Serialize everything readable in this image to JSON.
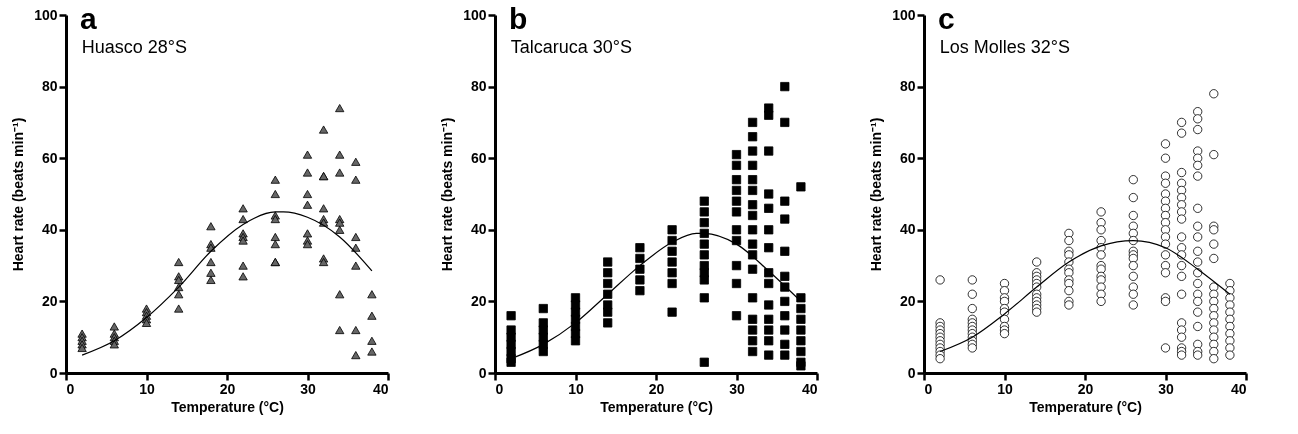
{
  "chart_data": [
    {
      "type": "scatter",
      "title": "Huasco 28°S",
      "annotations": [
        "a"
      ],
      "xlabel": "Temperature (°C)",
      "ylabel": "Heart rate (beats min⁻¹)",
      "xlim": [
        0,
        40
      ],
      "xticks": [
        0,
        10,
        20,
        30,
        40
      ],
      "ylim": [
        0,
        100
      ],
      "yticks": [
        0,
        20,
        40,
        60,
        80,
        100
      ],
      "grid": false,
      "series": [
        {
          "marker": "triangle",
          "color": "#666666",
          "x": [
            2,
            2,
            2,
            2,
            2,
            6,
            6,
            6,
            6,
            6,
            10,
            10,
            10,
            10,
            10,
            14,
            14,
            14,
            14,
            14,
            14,
            18,
            18,
            18,
            18,
            18,
            18,
            22,
            22,
            22,
            22,
            22,
            22,
            22,
            26,
            26,
            26,
            26,
            26,
            26,
            26,
            26,
            30,
            30,
            30,
            30,
            30,
            30,
            30,
            32,
            32,
            32,
            32,
            32,
            32,
            32,
            32,
            34,
            34,
            34,
            34,
            34,
            34,
            34,
            34,
            36,
            36,
            36,
            36,
            36,
            36,
            36,
            38,
            38,
            38,
            38
          ],
          "values": [
            11,
            10,
            9,
            8,
            7,
            13,
            11,
            10,
            9,
            8,
            18,
            17,
            16,
            15,
            14,
            31,
            27,
            26,
            24,
            22,
            18,
            41,
            36,
            35,
            31,
            28,
            26,
            46,
            43,
            39,
            38,
            37,
            30,
            27,
            54,
            50,
            44,
            43,
            38,
            36,
            31,
            31,
            61,
            56,
            50,
            47,
            39,
            37,
            36,
            68,
            55,
            55,
            46,
            43,
            42,
            32,
            31,
            74,
            61,
            56,
            43,
            42,
            40,
            22,
            12,
            59,
            54,
            38,
            35,
            30,
            12,
            5,
            22,
            16,
            9,
            6
          ]
        },
        {
          "type": "line",
          "marker": "none",
          "line_style": "solid",
          "color": "#000000",
          "x": [
            2,
            6,
            10,
            14,
            18,
            22,
            26,
            27,
            30,
            34,
            38
          ],
          "values": [
            5,
            9,
            15.5,
            24,
            34,
            41.5,
            45,
            45,
            43.5,
            38,
            28.5
          ]
        }
      ]
    },
    {
      "type": "scatter",
      "title": "Talcaruca 30°S",
      "annotations": [
        "b"
      ],
      "xlabel": "Temperature (°C)",
      "ylabel": "Heart rate (beats min⁻¹)",
      "xlim": [
        0,
        40
      ],
      "xticks": [
        0,
        10,
        20,
        30,
        40
      ],
      "ylim": [
        0,
        100
      ],
      "yticks": [
        0,
        20,
        40,
        60,
        80,
        100
      ],
      "grid": false,
      "series": [
        {
          "marker": "square",
          "color": "#000000",
          "x": [
            2,
            2,
            2,
            2,
            2,
            2,
            2,
            6,
            6,
            6,
            6,
            6,
            6,
            10,
            10,
            10,
            10,
            10,
            10,
            10,
            14,
            14,
            14,
            14,
            14,
            14,
            14,
            18,
            18,
            18,
            18,
            18,
            22,
            22,
            22,
            22,
            22,
            22,
            22,
            26,
            26,
            26,
            26,
            26,
            26,
            26,
            26,
            26,
            26,
            26,
            30,
            30,
            30,
            30,
            30,
            30,
            30,
            30,
            30,
            30,
            30,
            32,
            32,
            32,
            32,
            32,
            32,
            32,
            32,
            32,
            32,
            32,
            32,
            32,
            32,
            32,
            32,
            32,
            34,
            34,
            34,
            34,
            34,
            34,
            34,
            34,
            34,
            34,
            34,
            34,
            34,
            34,
            36,
            36,
            36,
            36,
            36,
            36,
            36,
            36,
            36,
            36,
            36,
            36,
            38,
            38,
            38,
            38,
            38,
            38,
            38,
            38,
            38
          ],
          "values": [
            16,
            12,
            10,
            8,
            6,
            4,
            3,
            18,
            14,
            12,
            10,
            8,
            6,
            21,
            19,
            17,
            15,
            13,
            11,
            9,
            31,
            28,
            25,
            22,
            19,
            17,
            14,
            35,
            32,
            29,
            26,
            23,
            40,
            37,
            34,
            31,
            28,
            25,
            17,
            48,
            45,
            42,
            39,
            36,
            33,
            30,
            28,
            26,
            21,
            3,
            61,
            58,
            54,
            51,
            48,
            45,
            40,
            37,
            30,
            25,
            16,
            70,
            66,
            62,
            58,
            54,
            51,
            47,
            44,
            40,
            36,
            33,
            29,
            21,
            15,
            12,
            9,
            6,
            74,
            72,
            62,
            50,
            46,
            40,
            35,
            28,
            25,
            19,
            15,
            12,
            9,
            5,
            80,
            70,
            48,
            43,
            34,
            27,
            24,
            20,
            16,
            12,
            8,
            5,
            52,
            21,
            18,
            15,
            12,
            9,
            6,
            3,
            2
          ]
        },
        {
          "type": "line",
          "marker": "none",
          "line_style": "solid",
          "color": "#000000",
          "x": [
            2,
            6,
            10,
            14,
            18,
            22,
            25,
            26,
            30,
            34,
            38
          ],
          "values": [
            4,
            8,
            14,
            22,
            30,
            36.5,
            39,
            39,
            36,
            28.5,
            20
          ]
        }
      ]
    },
    {
      "type": "scatter",
      "title": "Los Molles 32°S",
      "annotations": [
        "c"
      ],
      "xlabel": "Temperature (°C)",
      "ylabel": "Heart rate (beats min⁻¹)",
      "xlim": [
        0,
        40
      ],
      "xticks": [
        0,
        10,
        20,
        30,
        40
      ],
      "ylim": [
        0,
        100
      ],
      "yticks": [
        0,
        20,
        40,
        60,
        80,
        100
      ],
      "grid": false,
      "series": [
        {
          "marker": "circle",
          "color": "#ffffff",
          "x": [
            2,
            2,
            2,
            2,
            2,
            2,
            2,
            2,
            2,
            2,
            2,
            2,
            6,
            6,
            6,
            6,
            6,
            6,
            6,
            6,
            6,
            6,
            6,
            6,
            10,
            10,
            10,
            10,
            10,
            10,
            10,
            10,
            10,
            10,
            14,
            14,
            14,
            14,
            14,
            14,
            14,
            14,
            14,
            14,
            14,
            14,
            18,
            18,
            18,
            18,
            18,
            18,
            18,
            18,
            18,
            18,
            18,
            18,
            22,
            22,
            22,
            22,
            22,
            22,
            22,
            22,
            22,
            22,
            22,
            22,
            22,
            26,
            26,
            26,
            26,
            26,
            26,
            26,
            26,
            26,
            26,
            26,
            26,
            26,
            26,
            30,
            30,
            30,
            30,
            30,
            30,
            30,
            30,
            30,
            30,
            30,
            30,
            30,
            30,
            30,
            30,
            30,
            30,
            32,
            32,
            32,
            32,
            32,
            32,
            32,
            32,
            32,
            32,
            32,
            32,
            32,
            32,
            32,
            32,
            32,
            32,
            32,
            32,
            32,
            34,
            34,
            34,
            34,
            34,
            34,
            34,
            34,
            34,
            34,
            34,
            34,
            34,
            34,
            34,
            34,
            34,
            34,
            34,
            34,
            34,
            36,
            36,
            36,
            36,
            36,
            36,
            36,
            36,
            36,
            36,
            36,
            36,
            36,
            36,
            36,
            36,
            36,
            38,
            38,
            38,
            38,
            38,
            38,
            38,
            38,
            38,
            38,
            38
          ],
          "values": [
            26,
            14,
            13,
            12,
            11,
            10,
            9,
            8,
            7,
            6,
            5,
            4,
            26,
            22,
            18,
            15,
            14,
            13,
            12,
            11,
            10,
            9,
            8,
            7,
            25,
            23,
            21,
            20,
            18,
            17,
            15,
            13,
            12,
            11,
            31,
            28,
            27,
            26,
            25,
            24,
            22,
            21,
            20,
            19,
            18,
            17,
            39,
            37,
            34,
            33,
            31,
            29,
            28,
            26,
            25,
            23,
            20,
            19,
            45,
            42,
            40,
            37,
            35,
            33,
            30,
            29,
            27,
            26,
            24,
            22,
            20,
            54,
            49,
            44,
            41,
            39,
            37,
            34,
            33,
            32,
            30,
            27,
            24,
            22,
            19,
            64,
            60,
            55,
            53,
            50,
            48,
            46,
            44,
            42,
            40,
            38,
            36,
            33,
            30,
            28,
            21,
            20,
            7,
            70,
            67,
            56,
            53,
            51,
            49,
            47,
            45,
            43,
            38,
            35,
            33,
            30,
            27,
            22,
            14,
            12,
            10,
            7,
            6,
            5,
            73,
            71,
            68,
            62,
            60,
            58,
            55,
            46,
            41,
            38,
            34,
            31,
            28,
            25,
            22,
            20,
            17,
            13,
            8,
            6,
            5,
            78,
            61,
            41,
            40,
            36,
            32,
            24,
            22,
            20,
            18,
            16,
            14,
            12,
            10,
            8,
            6,
            4,
            25,
            23,
            21,
            19,
            17,
            15,
            13,
            11,
            9,
            7,
            5
          ]
        },
        {
          "type": "line",
          "marker": "none",
          "line_style": "solid",
          "color": "#000000",
          "x": [
            2,
            6,
            10,
            14,
            18,
            22,
            26,
            30,
            34,
            38
          ],
          "values": [
            6,
            10,
            16.5,
            24,
            31,
            35.5,
            37,
            35,
            29,
            22
          ]
        }
      ]
    }
  ]
}
